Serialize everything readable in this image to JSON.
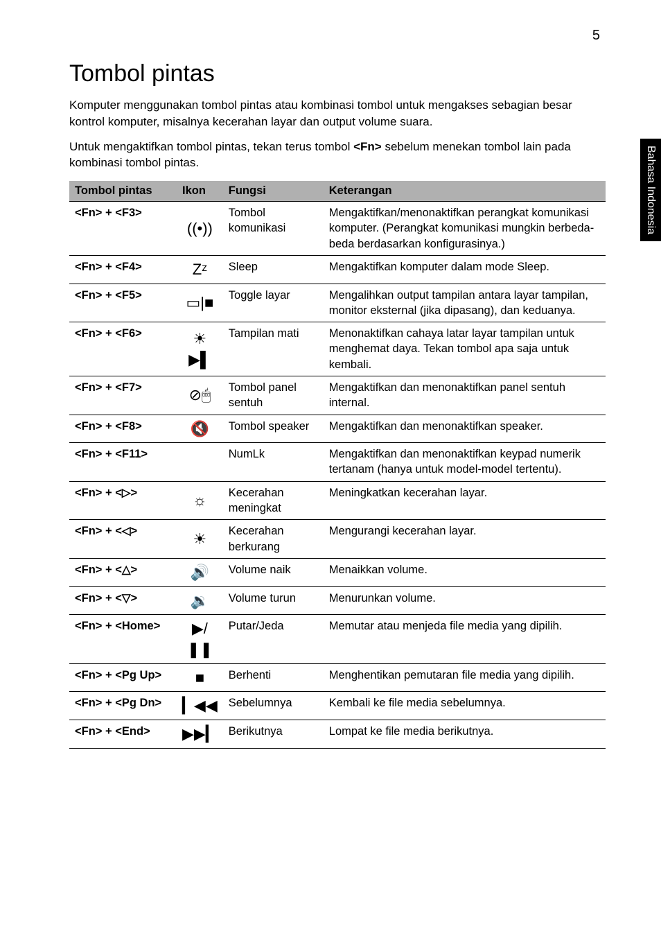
{
  "page_number": "5",
  "side_tab": "Bahasa Indonesia",
  "title": "Tombol pintas",
  "intro_1": "Komputer menggunakan tombol pintas atau kombinasi tombol untuk mengakses sebagian besar kontrol komputer, misalnya kecerahan layar dan output volume suara.",
  "intro_2a": "Untuk mengaktifkan tombol pintas, tekan terus tombol ",
  "intro_2_key": "<Fn>",
  "intro_2b": " sebelum menekan tombol lain pada kombinasi tombol pintas.",
  "headers": {
    "key": "Tombol pintas",
    "icon": "Ikon",
    "fn": "Fungsi",
    "desc": "Keterangan"
  },
  "rows": [
    {
      "key": "<Fn> + <F3>",
      "icon": "((•))",
      "icon_name": "wireless-icon",
      "fn": "Tombol komunikasi",
      "desc": "Mengaktifkan/menonaktifkan perangkat komunikasi komputer. (Perangkat komunikasi mungkin berbeda-beda berdasarkan konfigurasinya.)"
    },
    {
      "key": "<Fn> + <F4>",
      "icon": "Zᶻ",
      "icon_name": "sleep-icon",
      "fn": "Sleep",
      "desc": "Mengaktifkan komputer dalam mode Sleep."
    },
    {
      "key": "<Fn> + <F5>",
      "icon": "▭|■",
      "icon_name": "display-toggle-icon",
      "fn": "Toggle layar",
      "desc": "Mengalihkan output tampilan antara layar tampilan, monitor eksternal (jika dipasang), dan keduanya."
    },
    {
      "key": "<Fn> + <F6>",
      "icon": "☀▶▌",
      "icon_name": "display-off-icon",
      "fn": "Tampilan mati",
      "desc": "Menonaktifkan cahaya latar layar tampilan untuk menghemat daya. Tekan tombol apa saja untuk kembali."
    },
    {
      "key": "<Fn> + <F7>",
      "icon": "⊘🖱",
      "icon_name": "touchpad-icon",
      "fn": "Tombol panel sentuh",
      "desc": "Mengaktifkan dan menonaktifkan panel sentuh internal."
    },
    {
      "key": "<Fn> + <F8>",
      "icon": "🔇",
      "icon_name": "speaker-mute-icon",
      "fn": "Tombol speaker",
      "desc": "Mengaktifkan dan menonaktifkan speaker."
    },
    {
      "key": "<Fn> + <F11>",
      "icon": "",
      "icon_name": "numlk-icon",
      "fn": "NumLk",
      "desc": "Mengaktifkan dan menonaktifkan keypad numerik tertanam (hanya untuk model-model tertentu)."
    },
    {
      "key": "<Fn> + <▷>",
      "icon": "☼",
      "icon_name": "brightness-up-icon",
      "fn": "Kecerahan meningkat",
      "desc": "Meningkatkan kecerahan layar."
    },
    {
      "key": "<Fn> + <◁>",
      "icon": "☀",
      "icon_name": "brightness-down-icon",
      "fn": "Kecerahan berkurang",
      "desc": "Mengurangi kecerahan layar."
    },
    {
      "key": "<Fn> + <△>",
      "icon": "🔊",
      "icon_name": "volume-up-icon",
      "fn": "Volume naik",
      "desc": "Menaikkan volume."
    },
    {
      "key": "<Fn> + <▽>",
      "icon": "🔉",
      "icon_name": "volume-down-icon",
      "fn": "Volume turun",
      "desc": "Menurunkan volume."
    },
    {
      "key": "<Fn> + <Home>",
      "icon": "▶/❚❚",
      "icon_name": "play-pause-icon",
      "fn": "Putar/Jeda",
      "desc": "Memutar atau menjeda file media yang dipilih."
    },
    {
      "key": "<Fn> + <Pg Up>",
      "icon": "■",
      "icon_name": "stop-icon",
      "fn": "Berhenti",
      "desc": "Menghentikan pemutaran file media yang dipilih."
    },
    {
      "key": "<Fn> + <Pg Dn>",
      "icon": "▎◀◀",
      "icon_name": "previous-icon",
      "fn": "Sebelumnya",
      "desc": "Kembali ke file media sebelumnya."
    },
    {
      "key": "<Fn> + <End>",
      "icon": "▶▶▎",
      "icon_name": "next-icon",
      "fn": "Berikutnya",
      "desc": "Lompat ke file media berikutnya."
    }
  ]
}
